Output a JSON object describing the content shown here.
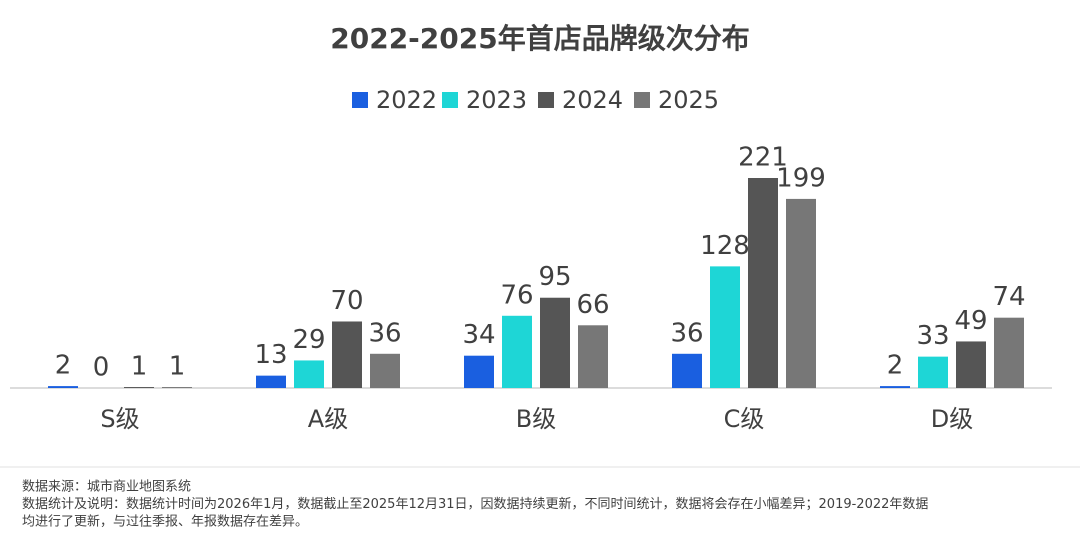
{
  "chart_data": {
    "type": "bar",
    "title": "2022-2025年首店品牌级次分布",
    "categories": [
      "S级",
      "A级",
      "B级",
      "C级",
      "D级"
    ],
    "series": [
      {
        "name": "2022",
        "color": "#1a5fe0",
        "values": [
          2,
          13,
          34,
          36,
          2
        ]
      },
      {
        "name": "2023",
        "color": "#1ed6d6",
        "values": [
          0,
          29,
          76,
          128,
          33
        ]
      },
      {
        "name": "2024",
        "color": "#555555",
        "values": [
          1,
          70,
          95,
          221,
          49
        ]
      },
      {
        "name": "2025",
        "color": "#777777",
        "values": [
          1,
          36,
          66,
          199,
          74
        ]
      }
    ],
    "legend": "top",
    "footnotes": [
      "数据来源：城市商业地图系统",
      "数据统计及说明：数据统计时间为2026年1月，数据截止至2025年12月31日，因数据持续更新，不同时间统计，数据将会存在小幅差异；2019-2022年数据",
      "均进行了更新，与过往季报、年报数据存在差异。"
    ]
  }
}
